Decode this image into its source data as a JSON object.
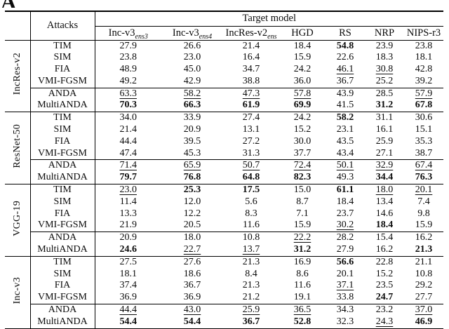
{
  "page": {
    "fragment_letter": "A"
  },
  "table": {
    "header": {
      "attacks_label": "Attacks",
      "target_model_label": "Target model",
      "columns": [
        {
          "label": "Inc-v3",
          "subscript": "ens3"
        },
        {
          "label": "Inc-v3",
          "subscript": "ens4"
        },
        {
          "label": "IncRes-v2",
          "subscript": "ens"
        },
        {
          "label": "HGD",
          "subscript": ""
        },
        {
          "label": "RS",
          "subscript": ""
        },
        {
          "label": "NRP",
          "subscript": ""
        },
        {
          "label": "NIPS-r3",
          "subscript": ""
        }
      ]
    },
    "groups": [
      {
        "source_model": "IncRes-v2",
        "rows": [
          {
            "attack": "TIM",
            "values": [
              "27.9",
              "26.6",
              "21.4",
              "18.4",
              "54.8",
              "23.9",
              "23.8"
            ],
            "styles": [
              "",
              "",
              "",
              "",
              "b",
              "",
              ""
            ]
          },
          {
            "attack": "SIM",
            "values": [
              "23.8",
              "23.0",
              "16.4",
              "15.9",
              "22.6",
              "18.3",
              "18.1"
            ],
            "styles": [
              "",
              "",
              "",
              "",
              "",
              "",
              ""
            ]
          },
          {
            "attack": "FIA",
            "values": [
              "48.9",
              "45.0",
              "34.7",
              "24.2",
              "46.1",
              "30.8",
              "42.8"
            ],
            "styles": [
              "",
              "",
              "",
              "",
              "u",
              "u",
              ""
            ]
          },
          {
            "attack": "VMI-FGSM",
            "values": [
              "49.2",
              "42.9",
              "38.8",
              "36.0",
              "36.7",
              "25.2",
              "39.2"
            ],
            "styles": [
              "",
              "",
              "",
              "",
              "",
              "",
              ""
            ]
          },
          {
            "attack": "ANDA",
            "values": [
              "63.3",
              "58.2",
              "47.3",
              "57.8",
              "43.9",
              "28.5",
              "57.9"
            ],
            "styles": [
              "u",
              "u",
              "u",
              "u",
              "",
              "",
              "u"
            ]
          },
          {
            "attack": "MultiANDA",
            "values": [
              "70.3",
              "66.3",
              "61.9",
              "69.9",
              "41.5",
              "31.2",
              "67.8"
            ],
            "styles": [
              "b",
              "b",
              "b",
              "b",
              "",
              "b",
              "b"
            ]
          }
        ]
      },
      {
        "source_model": "ResNet-50",
        "rows": [
          {
            "attack": "TIM",
            "values": [
              "34.0",
              "33.9",
              "27.4",
              "24.2",
              "58.2",
              "31.1",
              "30.6"
            ],
            "styles": [
              "",
              "",
              "",
              "",
              "b",
              "",
              ""
            ]
          },
          {
            "attack": "SIM",
            "values": [
              "21.4",
              "20.9",
              "13.1",
              "15.2",
              "23.1",
              "16.1",
              "15.1"
            ],
            "styles": [
              "",
              "",
              "",
              "",
              "",
              "",
              ""
            ]
          },
          {
            "attack": "FIA",
            "values": [
              "44.4",
              "39.5",
              "27.2",
              "30.0",
              "43.5",
              "25.9",
              "35.3"
            ],
            "styles": [
              "",
              "",
              "",
              "",
              "",
              "",
              ""
            ]
          },
          {
            "attack": "VMI-FGSM",
            "values": [
              "47.4",
              "45.3",
              "31.3",
              "37.7",
              "43.4",
              "27.1",
              "38.7"
            ],
            "styles": [
              "",
              "",
              "",
              "",
              "",
              "",
              ""
            ]
          },
          {
            "attack": "ANDA",
            "values": [
              "71.4",
              "65.9",
              "50.7",
              "72.4",
              "50.1",
              "32.9",
              "67.4"
            ],
            "styles": [
              "u",
              "u",
              "u",
              "u",
              "u",
              "u",
              "u"
            ]
          },
          {
            "attack": "MultiANDA",
            "values": [
              "79.7",
              "76.8",
              "64.8",
              "82.3",
              "49.3",
              "34.4",
              "76.3"
            ],
            "styles": [
              "b",
              "b",
              "b",
              "b",
              "",
              "b",
              "b"
            ]
          }
        ]
      },
      {
        "source_model": "VGG-19",
        "rows": [
          {
            "attack": "TIM",
            "values": [
              "23.0",
              "25.3",
              "17.5",
              "15.0",
              "61.1",
              "18.0",
              "20.1"
            ],
            "styles": [
              "u",
              "b",
              "b",
              "",
              "b",
              "u",
              "u"
            ]
          },
          {
            "attack": "SIM",
            "values": [
              "11.4",
              "12.0",
              "5.6",
              "8.7",
              "18.4",
              "13.4",
              "7.4"
            ],
            "styles": [
              "",
              "",
              "",
              "",
              "",
              "",
              ""
            ]
          },
          {
            "attack": "FIA",
            "values": [
              "13.3",
              "12.2",
              "8.3",
              "7.1",
              "23.7",
              "14.6",
              "9.8"
            ],
            "styles": [
              "",
              "",
              "",
              "",
              "",
              "",
              ""
            ]
          },
          {
            "attack": "VMI-FGSM",
            "values": [
              "21.9",
              "20.5",
              "11.6",
              "15.9",
              "30.2",
              "18.4",
              "15.9"
            ],
            "styles": [
              "",
              "",
              "",
              "",
              "u",
              "b",
              ""
            ]
          },
          {
            "attack": "ANDA",
            "values": [
              "20.9",
              "18.0",
              "10.8",
              "22.2",
              "28.2",
              "15.4",
              "16.2"
            ],
            "styles": [
              "",
              "",
              "",
              "u",
              "",
              "",
              ""
            ]
          },
          {
            "attack": "MultiANDA",
            "values": [
              "24.6",
              "22.7",
              "13.7",
              "31.2",
              "27.9",
              "16.2",
              "21.3"
            ],
            "styles": [
              "b",
              "u",
              "u",
              "b",
              "",
              "",
              "b"
            ]
          }
        ]
      },
      {
        "source_model": "Inc-v3",
        "rows": [
          {
            "attack": "TIM",
            "values": [
              "27.5",
              "27.6",
              "21.3",
              "16.9",
              "56.6",
              "22.8",
              "21.1"
            ],
            "styles": [
              "",
              "",
              "",
              "",
              "b",
              "",
              ""
            ]
          },
          {
            "attack": "SIM",
            "values": [
              "18.1",
              "18.6",
              "8.4",
              "8.6",
              "20.1",
              "15.2",
              "10.8"
            ],
            "styles": [
              "",
              "",
              "",
              "",
              "",
              "",
              ""
            ]
          },
          {
            "attack": "FIA",
            "values": [
              "37.4",
              "36.7",
              "21.3",
              "11.6",
              "37.1",
              "23.5",
              "29.2"
            ],
            "styles": [
              "",
              "",
              "",
              "",
              "u",
              "",
              ""
            ]
          },
          {
            "attack": "VMI-FGSM",
            "values": [
              "36.9",
              "36.9",
              "21.2",
              "19.1",
              "33.8",
              "24.7",
              "27.7"
            ],
            "styles": [
              "",
              "",
              "",
              "",
              "",
              "b",
              ""
            ]
          },
          {
            "attack": "ANDA",
            "values": [
              "44.4",
              "43.0",
              "25.9",
              "36.5",
              "34.3",
              "23.2",
              "37.0"
            ],
            "styles": [
              "u",
              "u",
              "u",
              "u",
              "",
              "",
              "u"
            ]
          },
          {
            "attack": "MultiANDA",
            "values": [
              "54.4",
              "54.4",
              "36.7",
              "52.8",
              "32.3",
              "24.3",
              "46.9"
            ],
            "styles": [
              "b",
              "b",
              "b",
              "b",
              "",
              "u",
              "b"
            ]
          }
        ]
      }
    ]
  }
}
